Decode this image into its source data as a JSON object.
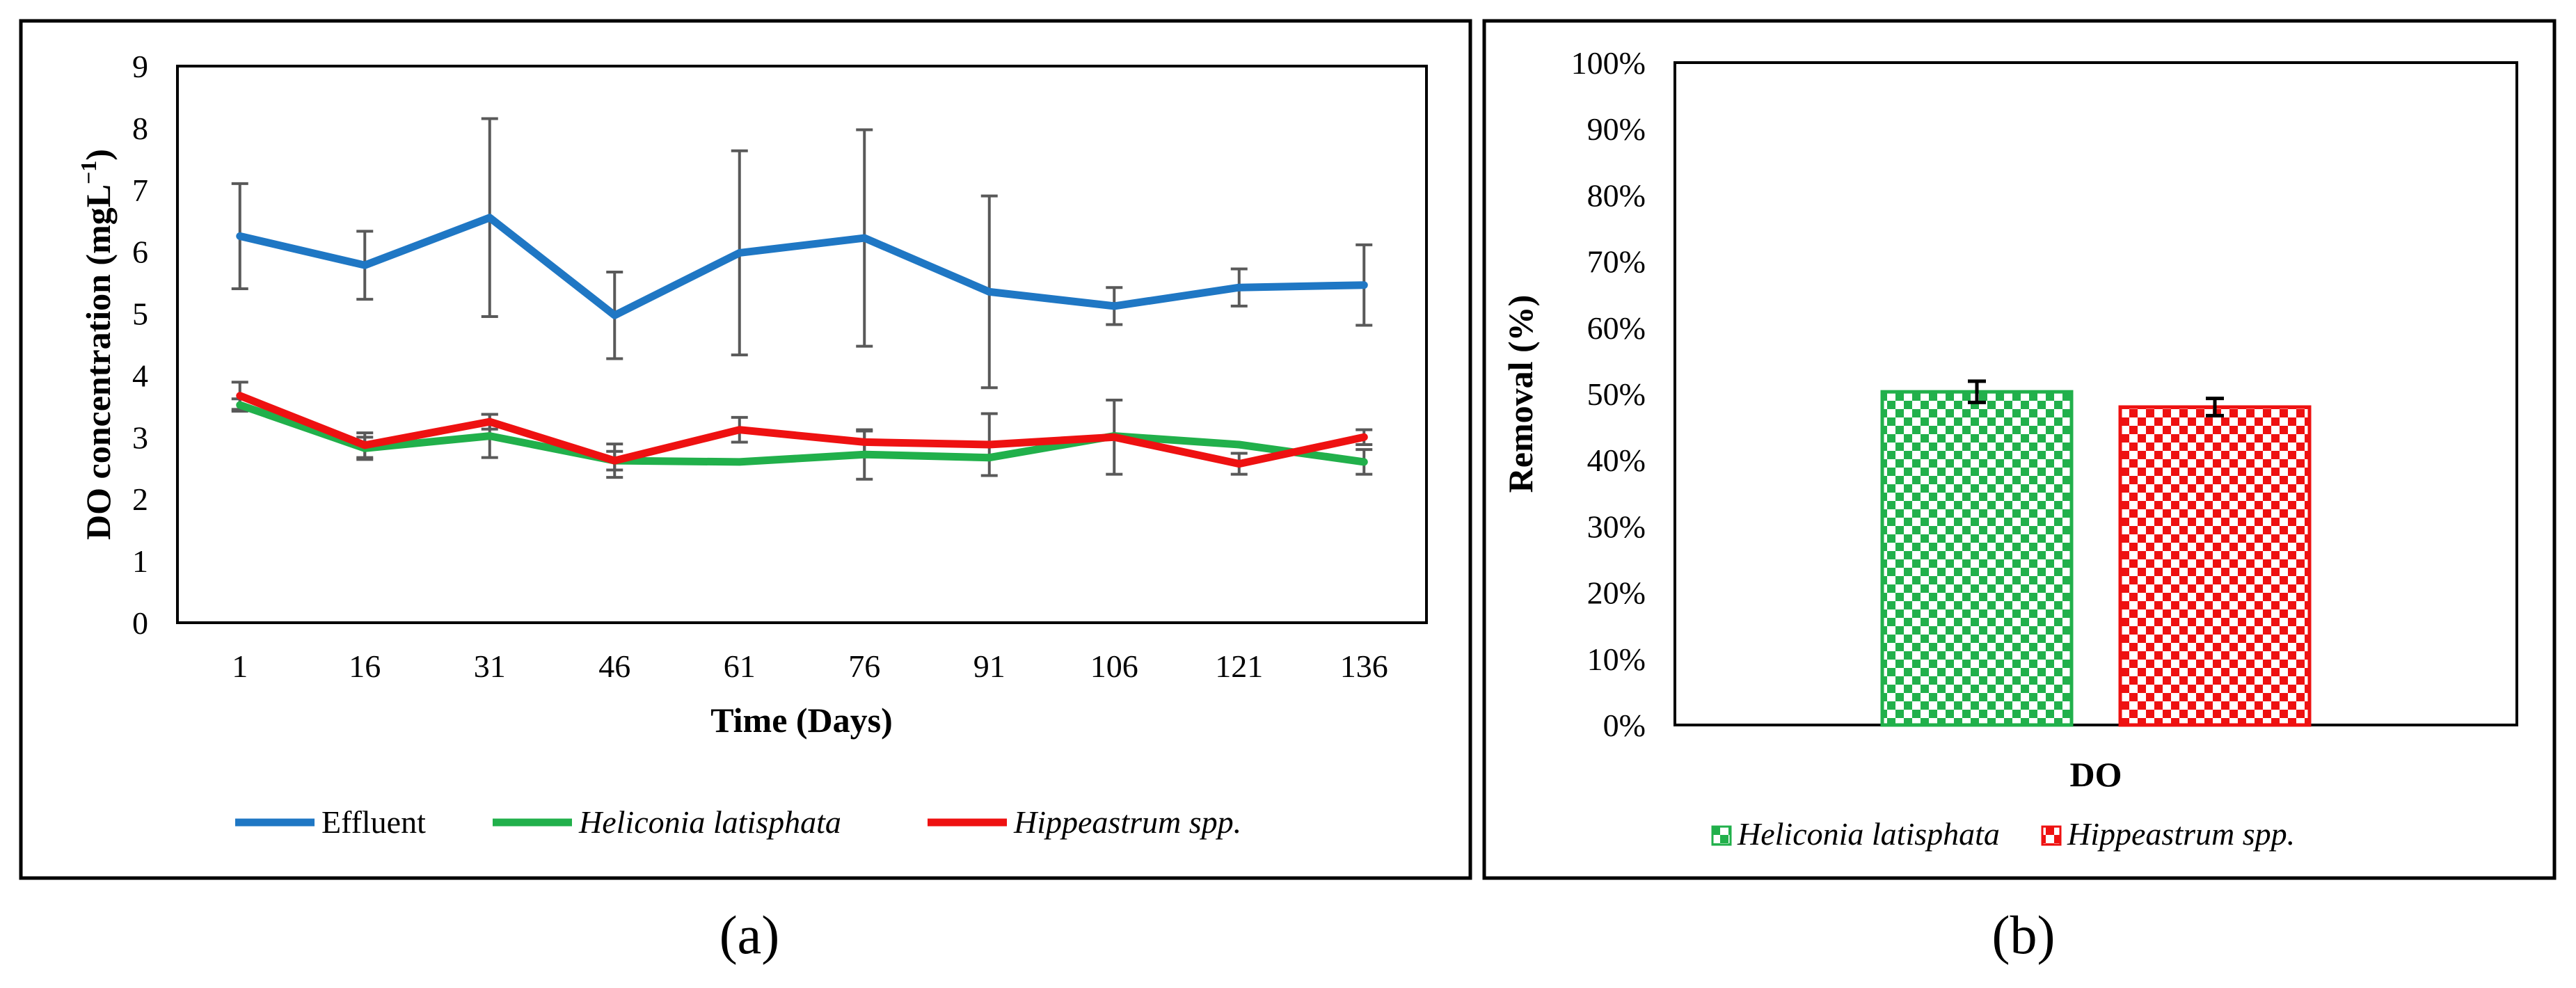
{
  "chart_data": [
    {
      "panel_label": "(a)",
      "type": "line",
      "xlabel": "Time (Days)",
      "ylabel": "DO concentration (mgL",
      "ylabel_superscript": "−1",
      "ylabel_close": ")",
      "ylim": [
        0,
        9
      ],
      "yticks": [
        "0",
        "1",
        "2",
        "3",
        "4",
        "5",
        "6",
        "7",
        "8",
        "9"
      ],
      "categories": [
        "1",
        "16",
        "31",
        "46",
        "61",
        "76",
        "91",
        "106",
        "121",
        "136"
      ],
      "legend_position": "bottom",
      "series": [
        {
          "name": "Effluent",
          "italic": false,
          "color": "#1f77c4",
          "values": [
            6.25,
            5.78,
            6.55,
            4.97,
            5.98,
            6.22,
            5.35,
            5.12,
            5.42,
            5.46
          ],
          "errors": [
            0.85,
            0.55,
            1.6,
            0.7,
            1.65,
            1.75,
            1.55,
            0.3,
            0.3,
            0.65
          ]
        },
        {
          "name": "Heliconia latisphata",
          "italic": true,
          "color": "#21b04b",
          "values": [
            3.52,
            2.82,
            3.02,
            2.62,
            2.6,
            2.72,
            2.67,
            3.02,
            2.88,
            2.6
          ],
          "errors": [
            0.1,
            0.18,
            0.35,
            0.15,
            0.0,
            0.4,
            0.0,
            0.0,
            0.0,
            0.2
          ]
        },
        {
          "name": "Hippeastrum spp.",
          "italic": true,
          "color": "#ee1111",
          "values": [
            3.67,
            2.87,
            3.25,
            2.62,
            3.12,
            2.92,
            2.88,
            3.0,
            2.57,
            3.0
          ],
          "errors": [
            0.22,
            0.2,
            0.12,
            0.27,
            0.2,
            0.18,
            0.5,
            0.6,
            0.17,
            0.12
          ]
        }
      ]
    },
    {
      "panel_label": "(b)",
      "type": "bar",
      "xlabel": "DO",
      "ylabel": "Removal (%)",
      "ylim": [
        0,
        100
      ],
      "yticks": [
        "0%",
        "10%",
        "20%",
        "30%",
        "40%",
        "50%",
        "60%",
        "70%",
        "80%",
        "90%",
        "100%"
      ],
      "legend_position": "bottom",
      "series": [
        {
          "name": "Heliconia latisphata",
          "italic": true,
          "color": "#21b04b",
          "value": 50.3,
          "error": 1.6
        },
        {
          "name": "Hippeastrum spp.",
          "italic": true,
          "color": "#ee1111",
          "value": 48.0,
          "error": 1.3
        }
      ]
    }
  ]
}
